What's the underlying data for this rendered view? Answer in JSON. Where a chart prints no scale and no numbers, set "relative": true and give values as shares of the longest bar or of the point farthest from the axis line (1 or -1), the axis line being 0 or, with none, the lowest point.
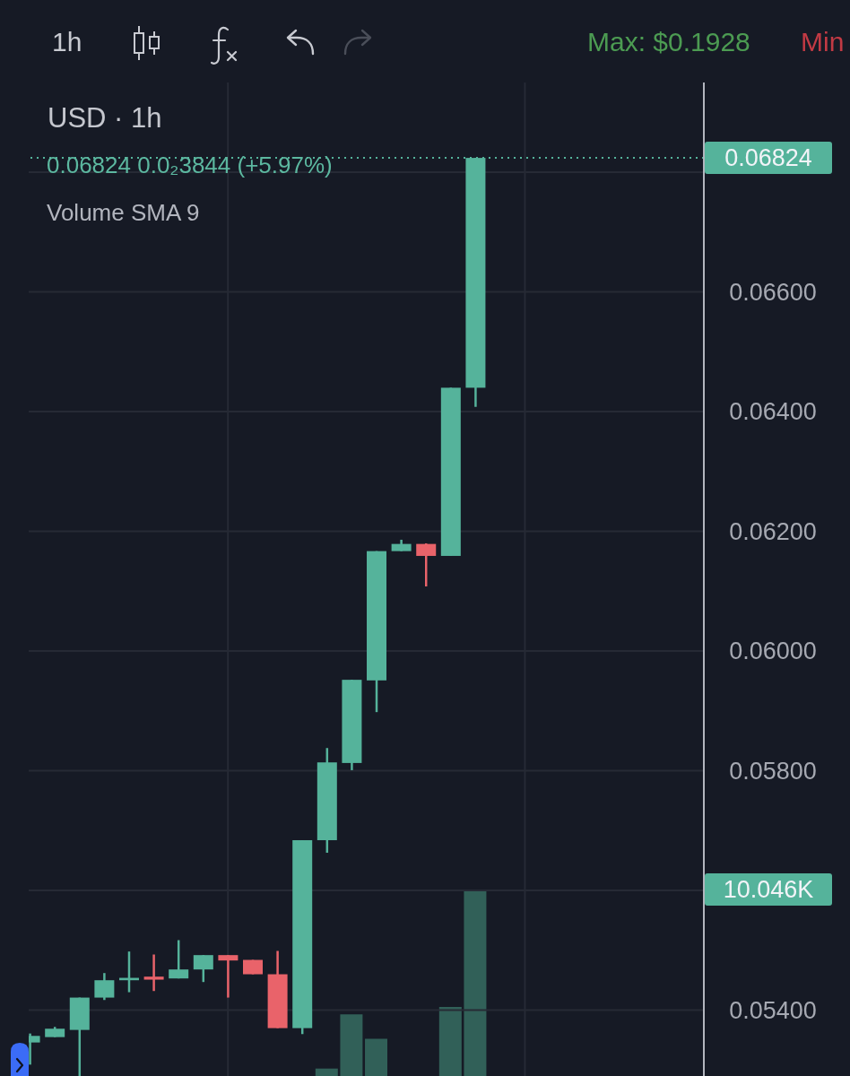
{
  "chart_data": [
    {
      "type": "candlestick",
      "title": "USD · 1h",
      "annotations": [
        "1h",
        "Max: $0.1928",
        "Min",
        "0.06824 0.0₂3844 (+5.97%)",
        "Volume SMA 9"
      ],
      "categories": [
        null,
        null,
        null,
        null,
        null,
        null,
        null,
        null,
        null,
        null,
        null,
        null,
        null,
        null,
        null,
        null,
        null,
        null,
        null,
        null,
        null,
        null,
        null,
        null,
        null,
        null,
        null,
        null
      ],
      "ohlc": [
        [
          0.05346,
          0.05361,
          0.05309,
          0.05357
        ],
        [
          0.05355,
          0.05372,
          0.05355,
          0.05369
        ],
        [
          0.05367,
          0.05421,
          0.0529,
          0.05421
        ],
        [
          0.05421,
          0.05462,
          0.05417,
          0.0545
        ],
        [
          0.0545,
          0.05498,
          0.0543,
          0.05454
        ],
        [
          0.05456,
          0.05493,
          0.05432,
          0.05451
        ],
        [
          0.05453,
          0.05517,
          0.05453,
          0.05468
        ],
        [
          0.05468,
          0.05492,
          0.05447,
          0.05492
        ],
        [
          0.05492,
          0.05492,
          0.05421,
          0.05483
        ],
        [
          0.05484,
          0.05484,
          0.0546,
          0.0546
        ],
        [
          0.0546,
          0.05499,
          0.0537,
          0.0537
        ],
        [
          0.0537,
          0.05684,
          0.0536,
          0.05684
        ],
        [
          0.05684,
          0.05838,
          0.05663,
          0.05814
        ],
        [
          0.05813,
          0.05952,
          0.05801,
          0.05952
        ],
        [
          0.05951,
          0.06167,
          0.05898,
          0.06167
        ],
        [
          0.06167,
          0.06186,
          0.06167,
          0.06179
        ],
        [
          0.06179,
          0.0618,
          0.06108,
          0.06159
        ],
        [
          0.06159,
          0.0644,
          0.06159,
          0.0644
        ],
        [
          0.0644,
          0.06824,
          0.06408,
          0.06824
        ],
        null,
        null,
        null,
        null,
        null,
        null,
        null,
        null,
        null
      ],
      "colors": [
        "#55b39b",
        "#55b39b",
        "#55b39b",
        "#55b39b",
        "#55b39b",
        "#e9636a",
        "#55b39b",
        "#55b39b",
        "#e9636a",
        "#e9636a",
        "#e9636a",
        "#55b39b",
        "#55b39b",
        "#55b39b",
        "#55b39b",
        "#55b39b",
        "#e9636a",
        "#55b39b",
        "#55b39b",
        null,
        null,
        null,
        null,
        null,
        null,
        null,
        null,
        null
      ],
      "ylim": [
        0.0529,
        0.0695
      ],
      "yticks": [
        {
          "value": 0.054,
          "label": "0.05400"
        },
        {
          "value": 0.056,
          "label": null
        },
        {
          "value": 0.058,
          "label": "0.05800"
        },
        {
          "value": 0.06,
          "label": "0.06000"
        },
        {
          "value": 0.062,
          "label": "0.06200"
        },
        {
          "value": 0.064,
          "label": "0.06400"
        },
        {
          "value": 0.066,
          "label": "0.06600"
        },
        {
          "value": 0.068,
          "label": null
        }
      ],
      "ref_lines": [
        {
          "axis": "y",
          "value": 0.06824,
          "label": "0.06824",
          "line_style": "dotted",
          "color": "#55b39b"
        }
      ],
      "grid": true
    },
    {
      "type": "bar",
      "relative": true,
      "categories": [
        null,
        null,
        null,
        null,
        null,
        null,
        null,
        null,
        null,
        null,
        null,
        null,
        null,
        null,
        null,
        null,
        null,
        null,
        null,
        null,
        null,
        null,
        null,
        null,
        null,
        null,
        null,
        null
      ],
      "values": [
        null,
        null,
        null,
        null,
        null,
        null,
        null,
        null,
        null,
        null,
        null,
        null,
        0.04,
        0.33,
        0.2,
        null,
        null,
        0.37,
        1,
        null,
        null,
        null,
        null,
        null,
        null,
        null,
        null,
        null
      ],
      "color": "#316058",
      "annotations": [
        "10.046K"
      ]
    }
  ]
}
